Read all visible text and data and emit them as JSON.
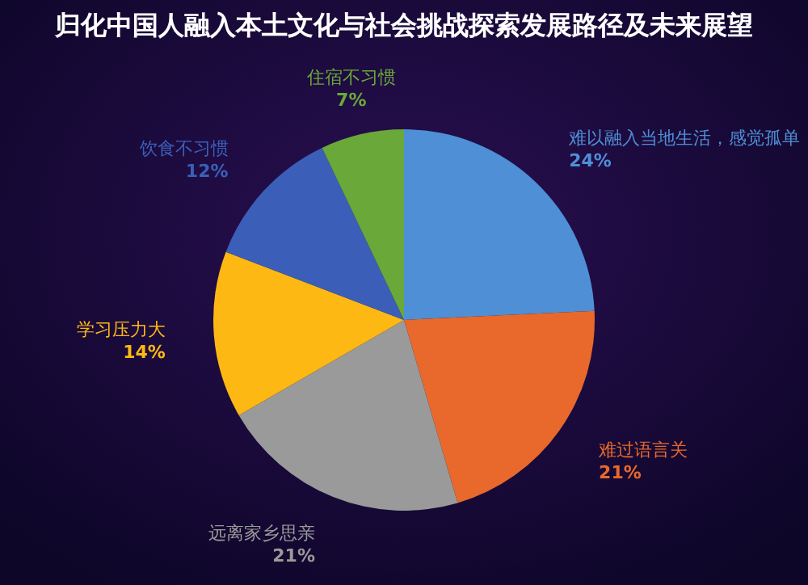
{
  "chart_data": {
    "type": "pie",
    "title": "归化中国人融入本土文化与社会挑战探索发展路径及未来展望",
    "categories": [
      "难以融入当地生活，感觉孤单",
      "难过语言关",
      "远离家乡思亲",
      "学习压力大",
      "饮食不习惯",
      "住宿不习惯"
    ],
    "values": [
      24,
      21,
      21,
      14,
      12,
      7
    ],
    "colors": [
      "#4e8fd6",
      "#e8692b",
      "#9a9a9a",
      "#fdb813",
      "#3b5fb8",
      "#6aa83a"
    ],
    "value_labels": [
      "24%",
      "21%",
      "21%",
      "14%",
      "12%",
      "7%"
    ]
  }
}
